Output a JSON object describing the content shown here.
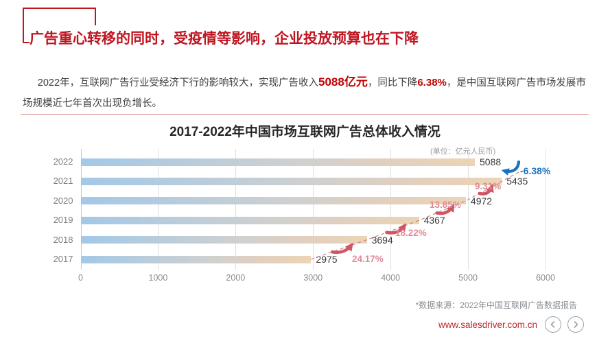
{
  "header": {
    "title": "广告重心转移的同时，受疫情等影响，企业投放预算也在下降",
    "accent_color": "#c01622"
  },
  "intro": {
    "part1": "2022年，互联网广告行业受经济下行的影响较大，实现广告收入",
    "highlight_revenue": "5088亿元",
    "part2": "，同比下降",
    "highlight_decline": "6.38%",
    "part3": "，是中国互联网广告市场发展市场规模近七年首次出现负增长。"
  },
  "chart": {
    "title": "2017-2022年中国市场互联网广告总体收入情况",
    "unit_note": "(单位：亿元人民币)"
  },
  "chart_data": {
    "type": "bar",
    "orientation": "horizontal",
    "title": "2017-2022年中国市场互联网广告总体收入情况",
    "unit": "亿元人民币",
    "categories": [
      "2022",
      "2021",
      "2020",
      "2019",
      "2018",
      "2017"
    ],
    "values": [
      5088,
      5435,
      4972,
      4367,
      3694,
      2975
    ],
    "growth_labels": [
      {
        "from": "2017",
        "to": "2018",
        "label": "24.17%",
        "negative": false
      },
      {
        "from": "2018",
        "to": "2019",
        "label": "18.22%",
        "negative": false
      },
      {
        "from": "2019",
        "to": "2020",
        "label": "13.85%",
        "negative": false
      },
      {
        "from": "2020",
        "to": "2021",
        "label": "9.31%",
        "negative": false
      },
      {
        "from": "2021",
        "to": "2022",
        "label": "-6.38%",
        "negative": true
      }
    ],
    "x_ticks": [
      0,
      1000,
      2000,
      3000,
      4000,
      5000,
      6000
    ],
    "xlim": [
      0,
      6000
    ],
    "grid": "vertical",
    "legend": "none",
    "bar_gradient": [
      "#a3c8e8",
      "#cfd0d0",
      "#ecd4b4"
    ],
    "trend_line_color": "#c9838e",
    "positive_arrow_color": "#d15663",
    "positive_label_color": "#e18a96",
    "negative_color": "#1a73c0"
  },
  "footer": {
    "source_note": "*数据来源：2022年中国互联网广告数据报告",
    "website": "www.salesdriver.com.cn",
    "icons": {
      "prev": "chevron-left",
      "next": "chevron-right"
    }
  }
}
